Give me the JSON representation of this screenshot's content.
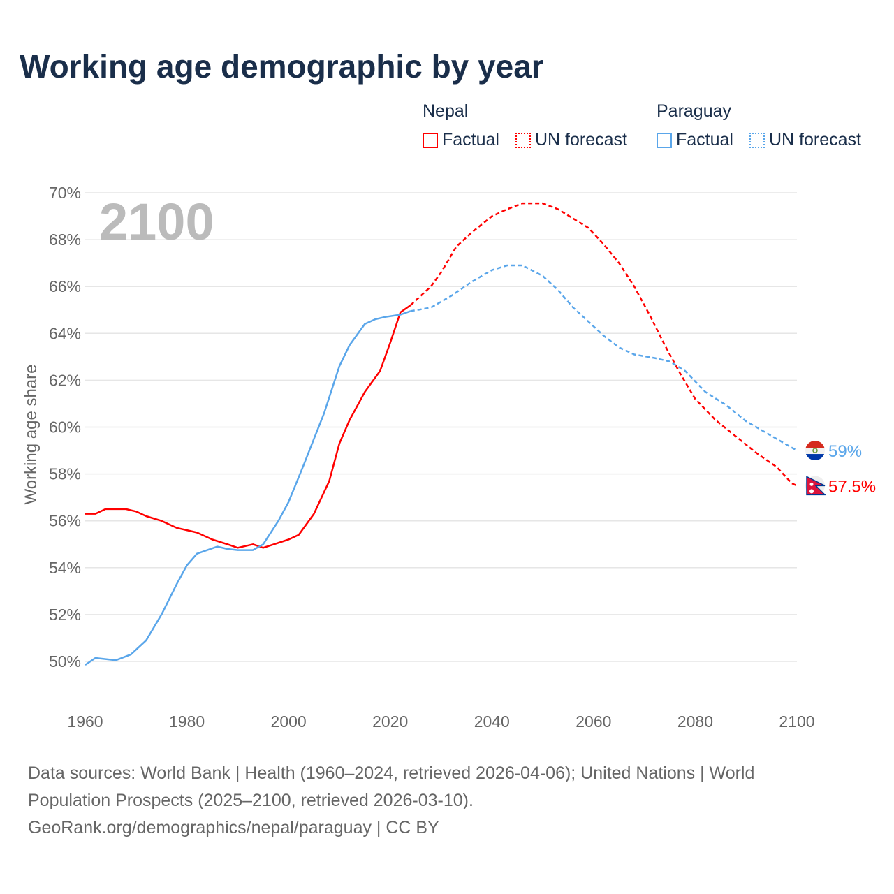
{
  "title": "Working age demographic by year",
  "legend": {
    "groups": [
      {
        "country": "Nepal",
        "factual_label": "Factual",
        "forecast_label": "UN forecast",
        "color": "#ff0000"
      },
      {
        "country": "Paraguay",
        "factual_label": "Factual",
        "forecast_label": "UN forecast",
        "color": "#5aa6ea"
      }
    ]
  },
  "year_label": "2100",
  "footer": {
    "line1": "Data sources: World Bank | Health (1960–2024, retrieved 2026-04-06); United Nations | World",
    "line2": "Population Prospects (2025–2100, retrieved 2026-03-10).",
    "line3": "GeoRank.org/demographics/nepal/paraguay | CC BY"
  },
  "chart_data": {
    "type": "line",
    "title": "Working age demographic by year",
    "xlabel": "",
    "ylabel": "Working age share",
    "xlim": [
      1960,
      2100
    ],
    "ylim": [
      50,
      70
    ],
    "xticks": [
      "1960",
      "1980",
      "2000",
      "2020",
      "2040",
      "2060",
      "2080",
      "2100"
    ],
    "yticks": [
      "50%",
      "52%",
      "54%",
      "56%",
      "58%",
      "60%",
      "62%",
      "64%",
      "66%",
      "68%",
      "70%"
    ],
    "grid": true,
    "end_labels": {
      "Nepal": "57.5%",
      "Paraguay": "59%"
    },
    "series": [
      {
        "name": "Nepal Factual",
        "color": "#ff0000",
        "dash": false,
        "x": [
          1960,
          1962,
          1964,
          1968,
          1970,
          1972,
          1975,
          1978,
          1980,
          1982,
          1985,
          1988,
          1990,
          1993,
          1995,
          2000,
          2002,
          2005,
          2008,
          2010,
          2012,
          2015,
          2018,
          2020,
          2022,
          2024
        ],
        "y": [
          56.3,
          56.3,
          56.5,
          56.5,
          56.4,
          56.2,
          56.0,
          55.7,
          55.6,
          55.5,
          55.2,
          55.0,
          54.85,
          55.0,
          54.85,
          55.2,
          55.4,
          56.3,
          57.7,
          59.3,
          60.3,
          61.5,
          62.4,
          63.6,
          64.9,
          65.2
        ]
      },
      {
        "name": "Nepal UN forecast",
        "color": "#ff0000",
        "dash": true,
        "x": [
          2024,
          2028,
          2030,
          2033,
          2036,
          2040,
          2043,
          2046,
          2050,
          2053,
          2056,
          2059,
          2062,
          2065,
          2068,
          2071,
          2074,
          2077,
          2080,
          2084,
          2088,
          2092,
          2096,
          2099,
          2100
        ],
        "y": [
          65.2,
          66.0,
          66.6,
          67.7,
          68.3,
          69.0,
          69.3,
          69.55,
          69.55,
          69.3,
          68.9,
          68.5,
          67.8,
          67.0,
          66.0,
          64.8,
          63.5,
          62.3,
          61.2,
          60.3,
          59.6,
          58.9,
          58.3,
          57.6,
          57.5
        ]
      },
      {
        "name": "Paraguay Factual",
        "color": "#5aa6ea",
        "dash": false,
        "x": [
          1960,
          1962,
          1966,
          1969,
          1972,
          1975,
          1978,
          1980,
          1982,
          1986,
          1988,
          1990,
          1993,
          1995,
          1998,
          2000,
          2003,
          2005,
          2007,
          2010,
          2012,
          2015,
          2017,
          2019,
          2022,
          2024
        ],
        "y": [
          49.85,
          50.15,
          50.05,
          50.3,
          50.9,
          52.0,
          53.3,
          54.1,
          54.6,
          54.9,
          54.8,
          54.75,
          54.75,
          55.0,
          56.0,
          56.8,
          58.4,
          59.5,
          60.6,
          62.6,
          63.5,
          64.4,
          64.6,
          64.7,
          64.8,
          64.95
        ]
      },
      {
        "name": "Paraguay UN forecast",
        "color": "#5aa6ea",
        "dash": true,
        "x": [
          2024,
          2028,
          2032,
          2036,
          2040,
          2043,
          2046,
          2050,
          2053,
          2056,
          2059,
          2062,
          2065,
          2068,
          2072,
          2075,
          2078,
          2082,
          2086,
          2090,
          2094,
          2098,
          2100
        ],
        "y": [
          64.95,
          65.1,
          65.6,
          66.2,
          66.7,
          66.9,
          66.9,
          66.45,
          65.85,
          65.1,
          64.5,
          63.9,
          63.4,
          63.1,
          62.95,
          62.8,
          62.4,
          61.5,
          60.95,
          60.25,
          59.75,
          59.25,
          59.0
        ]
      }
    ]
  }
}
